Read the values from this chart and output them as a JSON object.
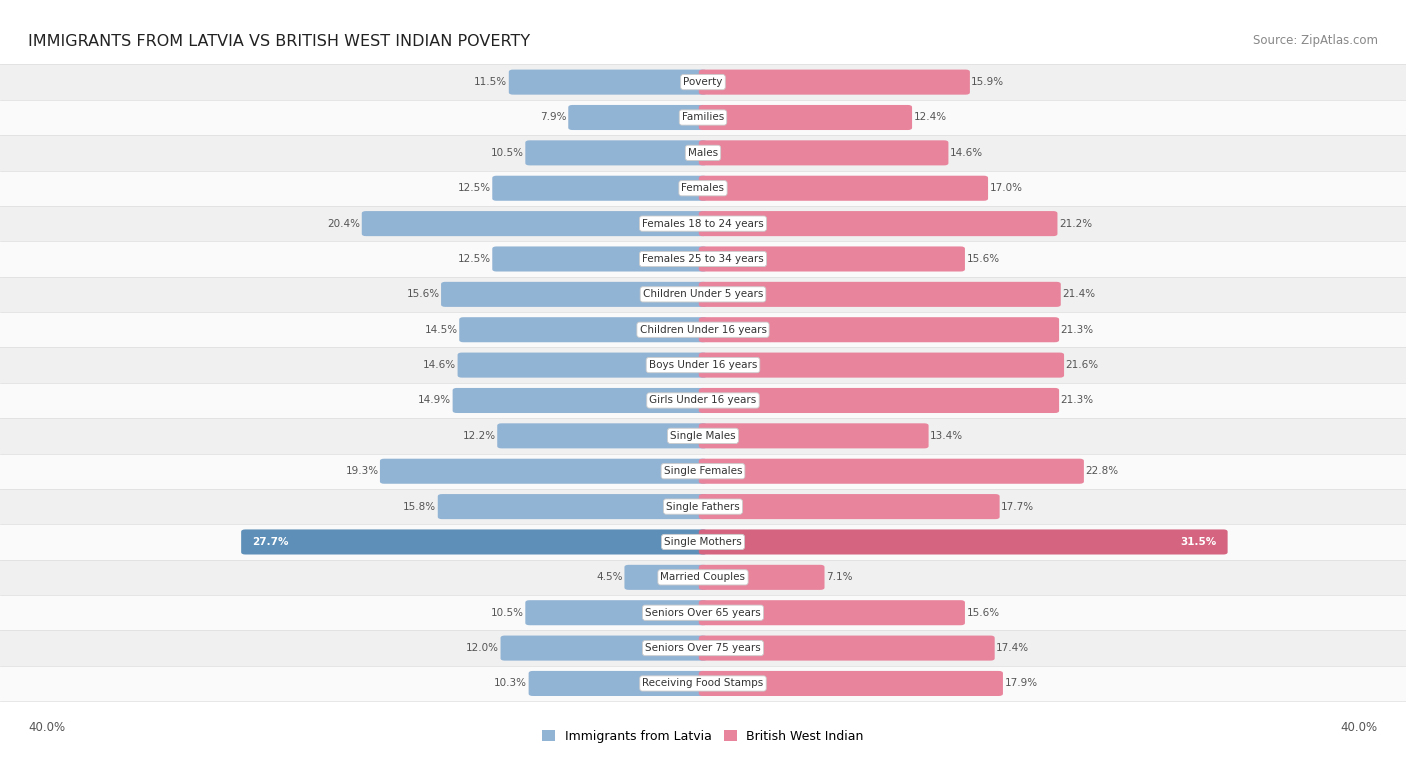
{
  "title": "IMMIGRANTS FROM LATVIA VS BRITISH WEST INDIAN POVERTY",
  "source": "Source: ZipAtlas.com",
  "categories": [
    "Poverty",
    "Families",
    "Males",
    "Females",
    "Females 18 to 24 years",
    "Females 25 to 34 years",
    "Children Under 5 years",
    "Children Under 16 years",
    "Boys Under 16 years",
    "Girls Under 16 years",
    "Single Males",
    "Single Females",
    "Single Fathers",
    "Single Mothers",
    "Married Couples",
    "Seniors Over 65 years",
    "Seniors Over 75 years",
    "Receiving Food Stamps"
  ],
  "latvia_values": [
    11.5,
    7.9,
    10.5,
    12.5,
    20.4,
    12.5,
    15.6,
    14.5,
    14.6,
    14.9,
    12.2,
    19.3,
    15.8,
    27.7,
    4.5,
    10.5,
    12.0,
    10.3
  ],
  "bwi_values": [
    15.9,
    12.4,
    14.6,
    17.0,
    21.2,
    15.6,
    21.4,
    21.3,
    21.6,
    21.3,
    13.4,
    22.8,
    17.7,
    31.5,
    7.1,
    15.6,
    17.4,
    17.9
  ],
  "latvia_color": "#92b4d4",
  "bwi_color": "#e8849c",
  "single_mothers_latvia_color": "#5d8fb8",
  "single_mothers_bwi_color": "#d46480",
  "bg_row_even": "#f0f0f0",
  "bg_row_odd": "#fafafa",
  "max_val": 40.0,
  "label_latvia": "Immigrants from Latvia",
  "label_bwi": "British West Indian",
  "title_fontsize": 11.5,
  "source_fontsize": 8.5,
  "value_fontsize": 7.5,
  "label_fontsize": 7.5
}
